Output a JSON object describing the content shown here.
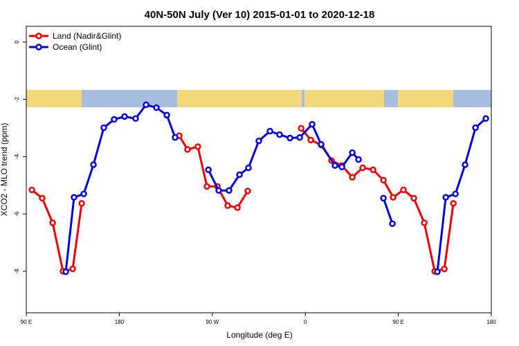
{
  "chart_data": {
    "type": "line",
    "title": "40N-50N July (Ver 10)   2015-01-01 to 2020-12-18",
    "xlabel": "Longitude (deg E)",
    "ylabel": "XCO2 - MLO trend (ppm)",
    "xlim": [
      90,
      540
    ],
    "ylim": [
      -9.45,
      0.55
    ],
    "xticks": [
      {
        "value": 90,
        "label": "90 E"
      },
      180,
      {
        "value": 270,
        "label": "90 W"
      },
      {
        "value": 360,
        "label": "0"
      },
      {
        "value": 450,
        "label": "90 E"
      },
      {
        "value": 540,
        "label": "180"
      }
    ],
    "yticks": [
      0,
      -2,
      -4,
      -6,
      -8
    ],
    "legend": "upper left",
    "series": [
      {
        "name": "Land (Nadir&Glint)",
        "color": "#ee0000",
        "x": [
          95.4,
          105.4,
          115.5,
          125.5,
          134.9,
          143.6,
          null,
          238,
          246,
          256,
          264.8,
          274.9,
          284.9,
          294.3,
          304.3,
          null,
          356,
          365.3,
          375.3,
          385.4,
          395.4,
          405.5,
          415.5,
          425.6,
          435.6,
          445,
          455,
          465,
          475.1,
          485.2,
          494.5,
          503.3
        ],
        "values": [
          -5.16,
          -5.45,
          -6.31,
          -8.0,
          -7.92,
          -5.63,
          null,
          -3.27,
          -3.75,
          -3.65,
          -5.04,
          -5.04,
          -5.71,
          -5.78,
          -5.2,
          null,
          -3.01,
          -3.42,
          -3.59,
          -4.14,
          -4.31,
          -4.72,
          -4.39,
          -4.46,
          -4.82,
          -5.42,
          -5.16,
          -5.45,
          -6.31,
          -8.0,
          -7.92,
          -5.63
        ]
      },
      {
        "name": "Ocean (Glint)",
        "color": "#0000dd",
        "x": [
          128.2,
          136.2,
          145.6,
          155,
          165,
          175,
          185.1,
          195.8,
          205.9,
          215.9,
          226,
          234,
          null,
          266.2,
          276.2,
          286.2,
          296.3,
          305,
          315,
          325.8,
          335.1,
          345.2,
          354.6,
          366.6,
          375.3,
          388.7,
          395.4,
          405.5,
          411.5,
          null,
          435.6,
          444.3,
          null,
          487.8,
          495.9,
          505.3,
          514.6,
          524.7,
          534.7
        ],
        "values": [
          -8.02,
          -5.42,
          -5.3,
          -4.28,
          -2.99,
          -2.7,
          -2.6,
          -2.67,
          -2.19,
          -2.29,
          -2.55,
          -3.33,
          null,
          -4.46,
          -5.18,
          -5.18,
          -4.63,
          -4.39,
          -3.45,
          -3.11,
          -3.23,
          -3.35,
          -3.33,
          -2.87,
          -3.57,
          -4.31,
          -4.36,
          -3.86,
          -4.1,
          null,
          -5.45,
          -6.34,
          null,
          -8.02,
          -5.42,
          -5.3,
          -4.28,
          -2.99,
          -2.67
        ]
      }
    ]
  }
}
